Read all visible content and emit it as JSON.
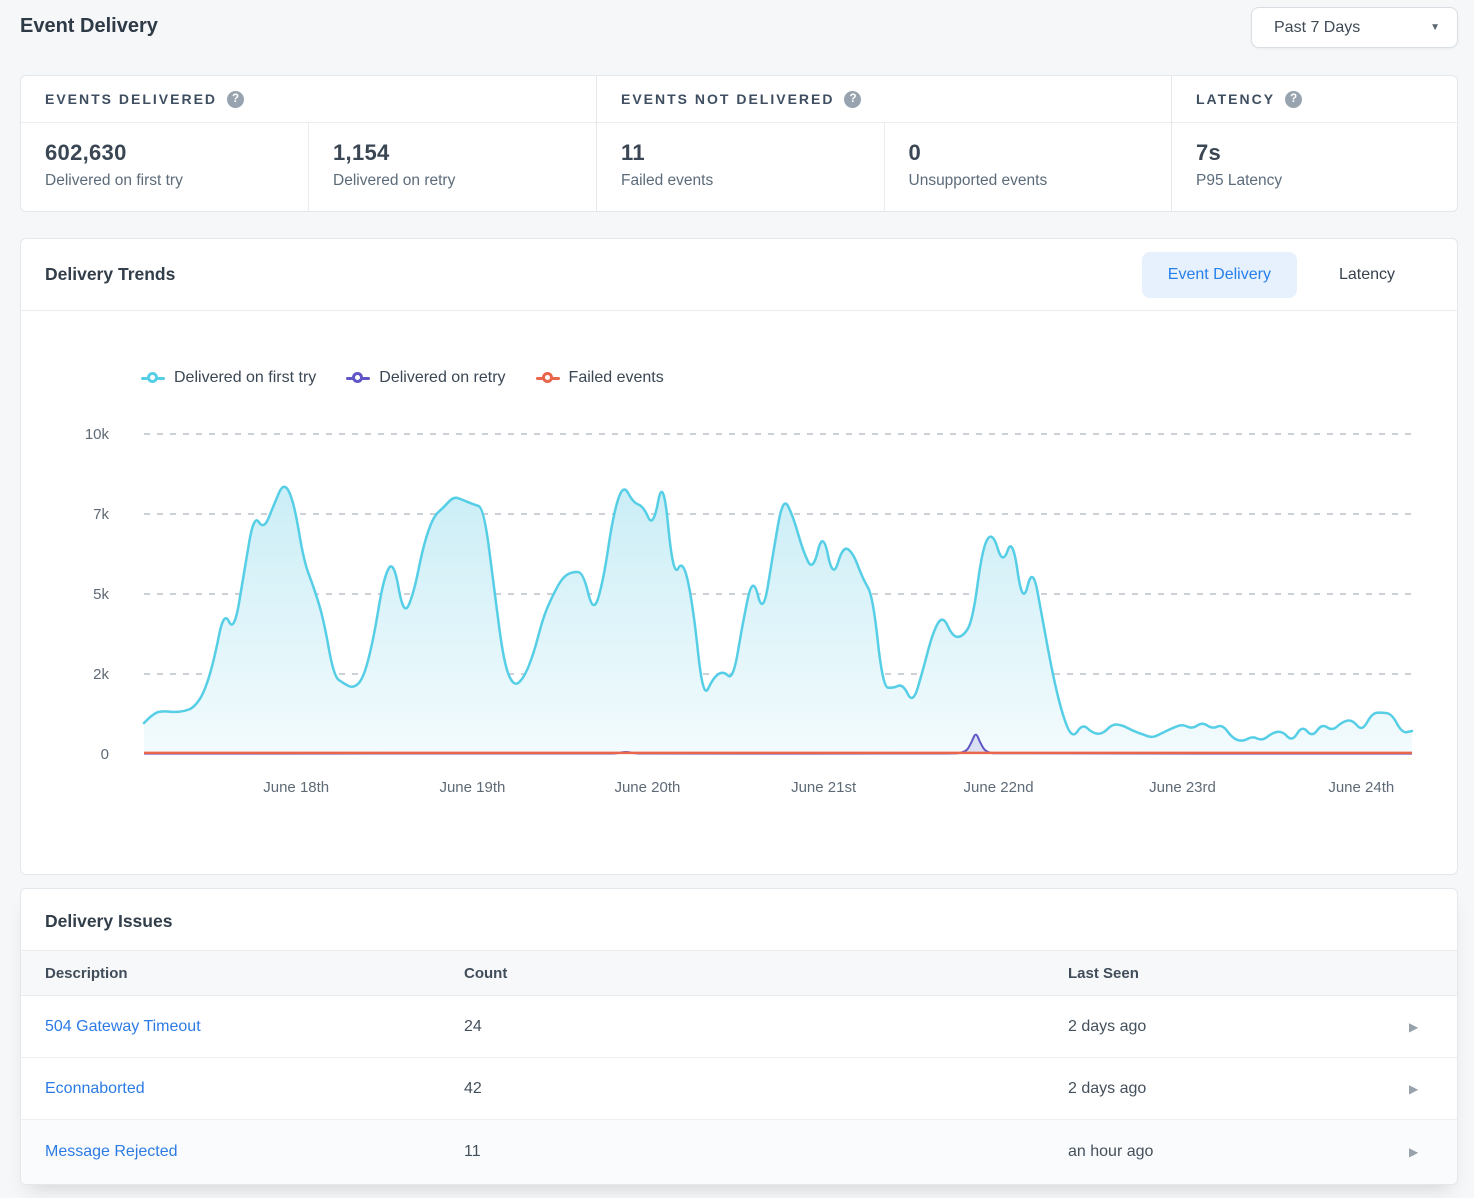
{
  "header": {
    "title": "Event Delivery",
    "range_selector": {
      "value": "Past 7 Days"
    }
  },
  "icons": {
    "help": "?",
    "caret_down": "▼",
    "chevron_right": "▶"
  },
  "stats": {
    "groups": [
      {
        "label": "EVENTS DELIVERED",
        "cells": [
          {
            "value": "602,630",
            "label": "Delivered on first try"
          },
          {
            "value": "1,154",
            "label": "Delivered on retry"
          }
        ]
      },
      {
        "label": "EVENTS NOT DELIVERED",
        "cells": [
          {
            "value": "11",
            "label": "Failed events"
          },
          {
            "value": "0",
            "label": "Unsupported events"
          }
        ]
      },
      {
        "label": "LATENCY",
        "cells": [
          {
            "value": "7s",
            "label": "P95 Latency"
          }
        ]
      }
    ]
  },
  "trends": {
    "title": "Delivery Trends",
    "tabs": [
      {
        "label": "Event Delivery",
        "active": true
      },
      {
        "label": "Latency",
        "active": false
      }
    ]
  },
  "chart_data": {
    "type": "area",
    "title": "Delivery Trends",
    "y_max": 10000,
    "y_ticks": [
      "10k",
      "7k",
      "5k",
      "2k",
      "0"
    ],
    "grid": "horizontal-dashed",
    "legend_position": "top-left",
    "x_ticks": [
      {
        "label": "June 18th",
        "pos": 0.12
      },
      {
        "label": "June 19th",
        "pos": 0.259
      },
      {
        "label": "June 20th",
        "pos": 0.397
      },
      {
        "label": "June 21st",
        "pos": 0.536
      },
      {
        "label": "June 22nd",
        "pos": 0.674
      },
      {
        "label": "June 23rd",
        "pos": 0.819
      },
      {
        "label": "June 24th",
        "pos": 0.96
      }
    ],
    "series": [
      {
        "name": "Delivered on first try",
        "color": "#55CEE6",
        "values": [
          970,
          1290,
          1340,
          1310,
          1330,
          1450,
          1900,
          2900,
          4480,
          3800,
          5600,
          7500,
          7000,
          7780,
          8520,
          7900,
          6030,
          5220,
          4200,
          2430,
          2200,
          2050,
          2380,
          3600,
          5510,
          6080,
          4300,
          5000,
          6550,
          7430,
          7700,
          8050,
          7930,
          7800,
          7700,
          5400,
          2900,
          2100,
          2350,
          3100,
          4300,
          5000,
          5550,
          5700,
          5670,
          4370,
          5400,
          7500,
          8450,
          7850,
          7750,
          7050,
          8750,
          5500,
          6100,
          4630,
          1700,
          2380,
          2600,
          2300,
          4160,
          5600,
          4300,
          6250,
          8060,
          7440,
          6340,
          5700,
          7000,
          5450,
          6500,
          6300,
          5470,
          4940,
          2100,
          2050,
          2200,
          1550,
          2600,
          3800,
          4350,
          3660,
          3660,
          4160,
          6500,
          6950,
          5900,
          6810,
          4600,
          5900,
          4200,
          2500,
          1200,
          470,
          950,
          650,
          620,
          940,
          900,
          730,
          620,
          500,
          660,
          810,
          930,
          780,
          1000,
          780,
          930,
          500,
          380,
          560,
          410,
          660,
          720,
          380,
          900,
          520,
          950,
          720,
          1000,
          1080,
          700,
          1280,
          1300,
          1250,
          650,
          720
        ]
      },
      {
        "name": "Delivered on retry",
        "color": "#6156C5",
        "points": [
          [
            0,
            12
          ],
          [
            0.365,
            12
          ],
          [
            0.374,
            20
          ],
          [
            0.38,
            78
          ],
          [
            0.386,
            20
          ],
          [
            0.395,
            12
          ],
          [
            0.635,
            12
          ],
          [
            0.648,
            40
          ],
          [
            0.6525,
            350
          ],
          [
            0.656,
            690
          ],
          [
            0.6595,
            350
          ],
          [
            0.664,
            40
          ],
          [
            0.675,
            12
          ],
          [
            1,
            12
          ]
        ]
      },
      {
        "name": "Failed events",
        "color": "#E8664B",
        "baseline_value": 35
      }
    ]
  },
  "issues": {
    "title": "Delivery Issues",
    "columns": [
      "Description",
      "Count",
      "Last Seen"
    ],
    "rows": [
      {
        "description": "504 Gateway Timeout",
        "count": "24",
        "last_seen": "2 days ago"
      },
      {
        "description": "Econnaborted",
        "count": "42",
        "last_seen": "2 days ago"
      },
      {
        "description": "Message Rejected",
        "count": "11",
        "last_seen": "an hour ago"
      }
    ]
  }
}
